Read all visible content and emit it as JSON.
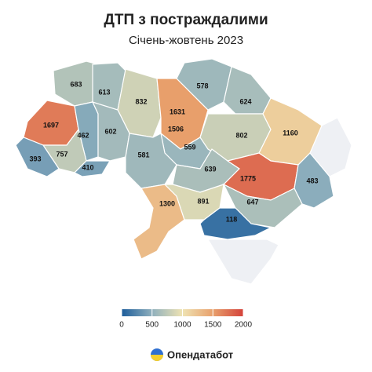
{
  "chart_data": {
    "type": "choropleth",
    "title": "ДТП з постраждалими",
    "subtitle": "Січень-жовтень 2023",
    "values": [
      683,
      613,
      832,
      1631,
      1506,
      578,
      624,
      1697,
      462,
      602,
      559,
      802,
      1160,
      757,
      393,
      410,
      581,
      639,
      1775,
      483,
      1300,
      891,
      647,
      118
    ],
    "colorscale": [
      "#1d5d9b",
      "#8fb0bd",
      "#efe3b3",
      "#e8a06c",
      "#d4423a"
    ],
    "clim": [
      0,
      2000
    ],
    "cticks": [
      0,
      500,
      1000,
      1500,
      2000
    ],
    "no_data_color": "#eef0f4",
    "brand": "Опендатабот"
  }
}
